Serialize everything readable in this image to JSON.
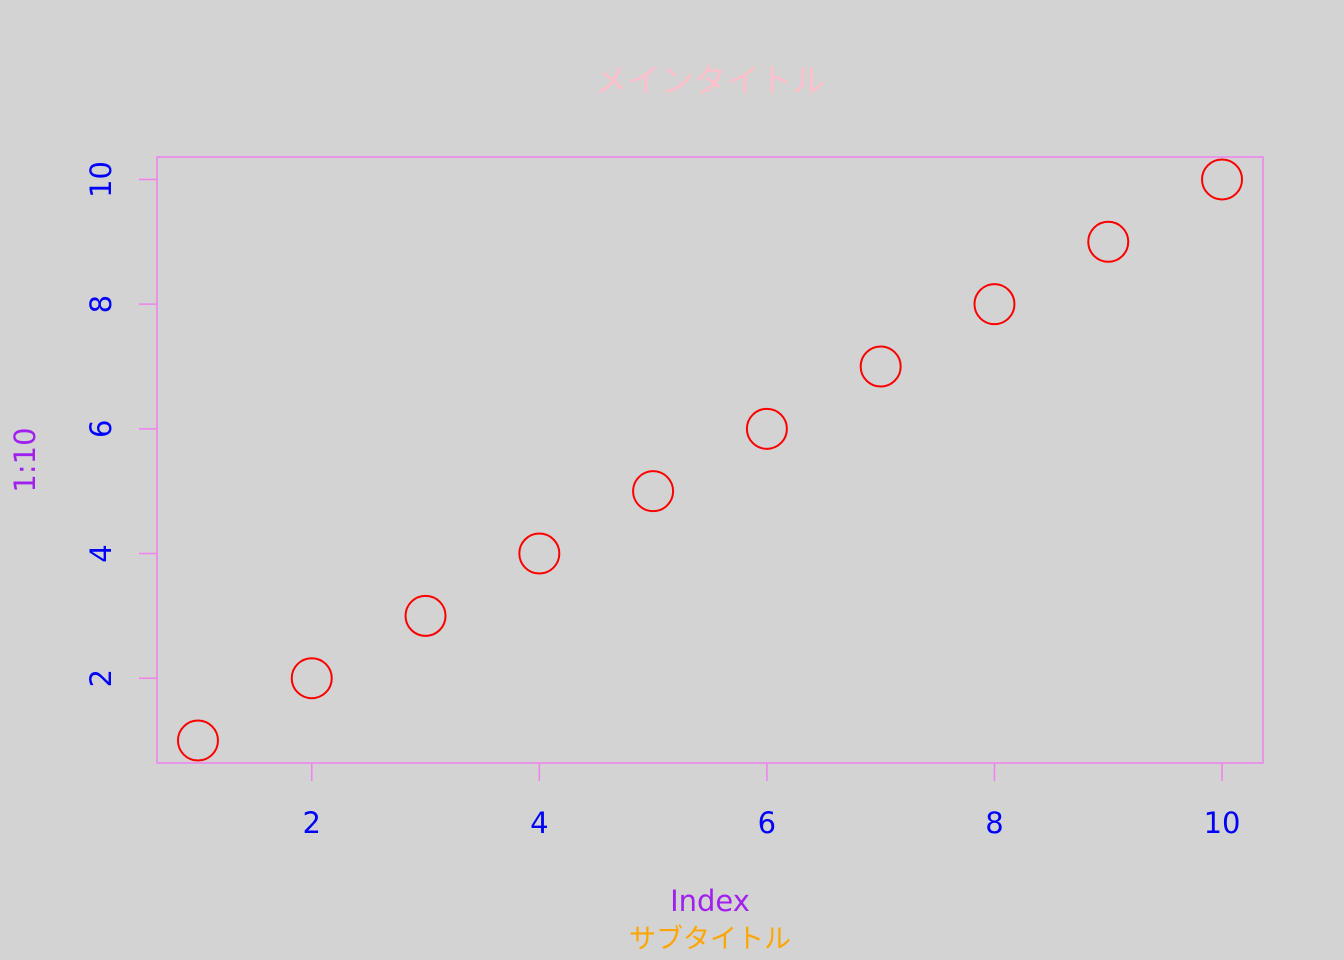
{
  "chart_data": {
    "type": "scatter",
    "title": "メインタイトル",
    "subtitle": "サブタイトル",
    "xlabel": "Index",
    "ylabel": "1:10",
    "x": [
      1,
      2,
      3,
      4,
      5,
      6,
      7,
      8,
      9,
      10
    ],
    "y": [
      1,
      2,
      3,
      4,
      5,
      6,
      7,
      8,
      9,
      10
    ],
    "xlim": [
      0.64,
      10.36
    ],
    "ylim": [
      0.64,
      10.36
    ],
    "xticks": [
      "2",
      "4",
      "6",
      "8",
      "10"
    ],
    "yticks": [
      "2",
      "4",
      "6",
      "8",
      "10"
    ],
    "grid": false,
    "colors": {
      "background": "#d3d3d3",
      "points": "#ff0000",
      "axes": "#ee82ee",
      "tick_labels": "#0000ff",
      "axis_labels": "#a020f0",
      "title": "#ffc0cb",
      "subtitle": "#ffa500"
    }
  }
}
